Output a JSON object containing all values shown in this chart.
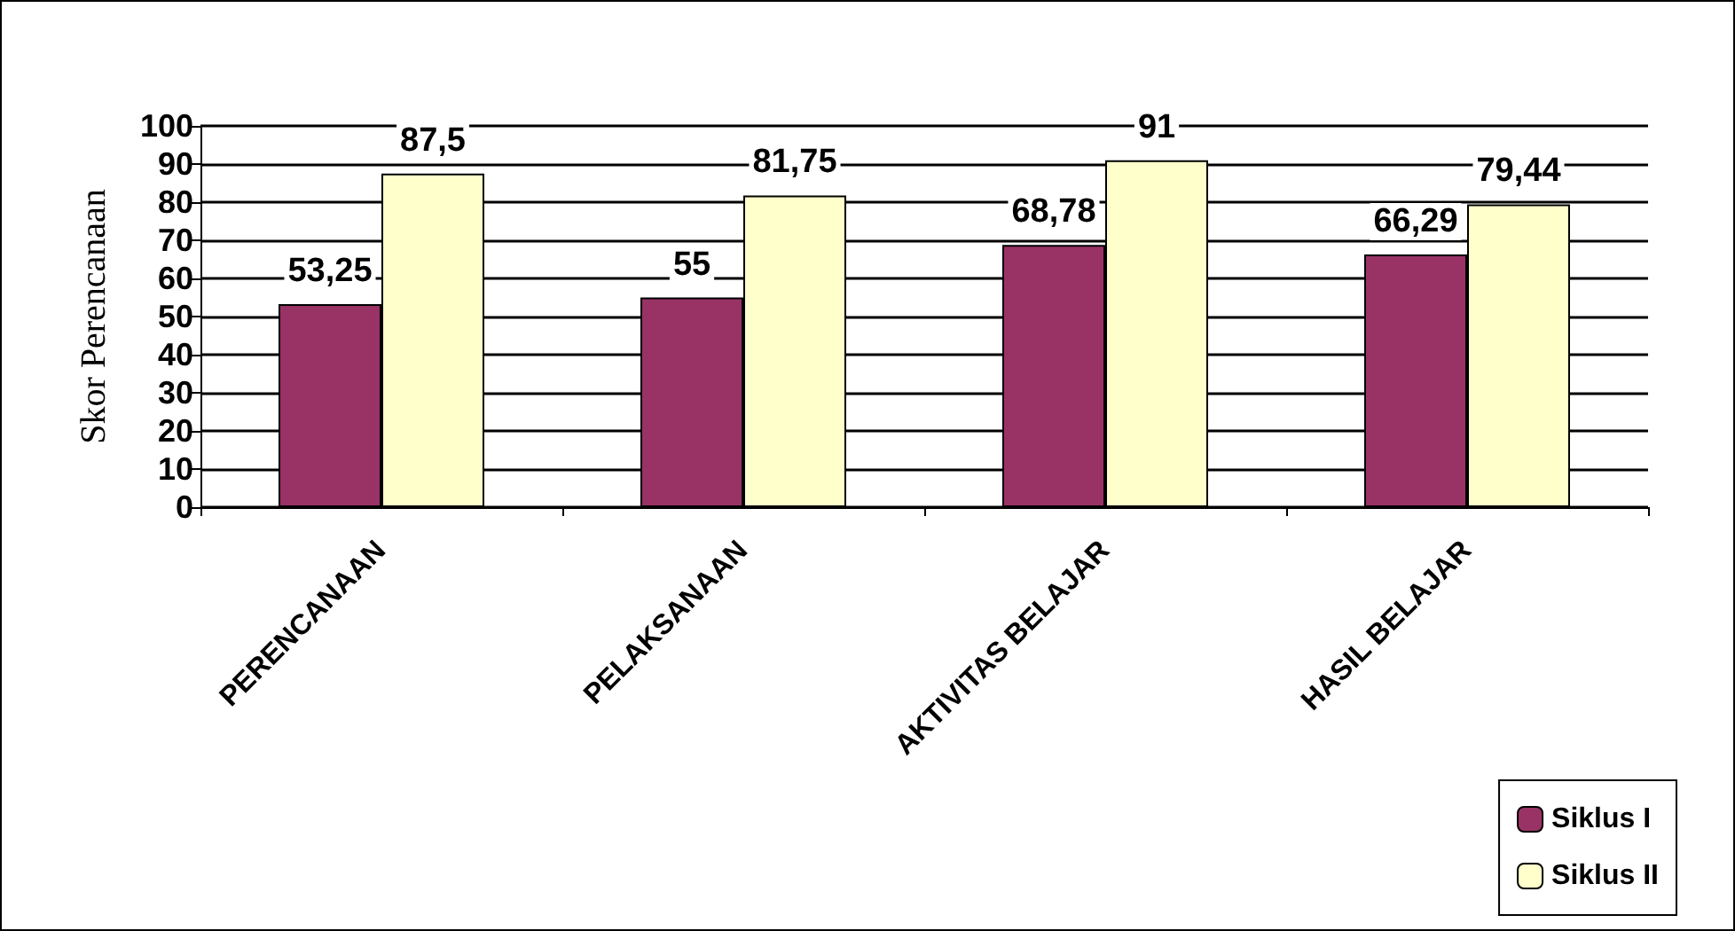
{
  "chart_data": {
    "type": "bar",
    "ylabel": "Skor Perencanaan",
    "categories": [
      "PERENCANAAN",
      "PELAKSANAAN",
      "AKTIVITAS BELAJAR",
      "HASIL BELAJAR"
    ],
    "series": [
      {
        "name": "Siklus I",
        "color": "#993366",
        "values": [
          53.25,
          55,
          68.78,
          66.29
        ],
        "value_labels": [
          "53,25",
          "55",
          "68,78",
          "66,29"
        ]
      },
      {
        "name": "Siklus II",
        "color": "#ffffcc",
        "values": [
          87.5,
          81.75,
          91,
          79.44
        ],
        "value_labels": [
          "87,5",
          "81,75",
          "91",
          "79,44"
        ]
      }
    ],
    "ylim": [
      0,
      100
    ],
    "yticks": [
      0,
      10,
      20,
      30,
      40,
      50,
      60,
      70,
      80,
      90,
      100
    ],
    "grid": "y",
    "legend": "bottom right"
  }
}
